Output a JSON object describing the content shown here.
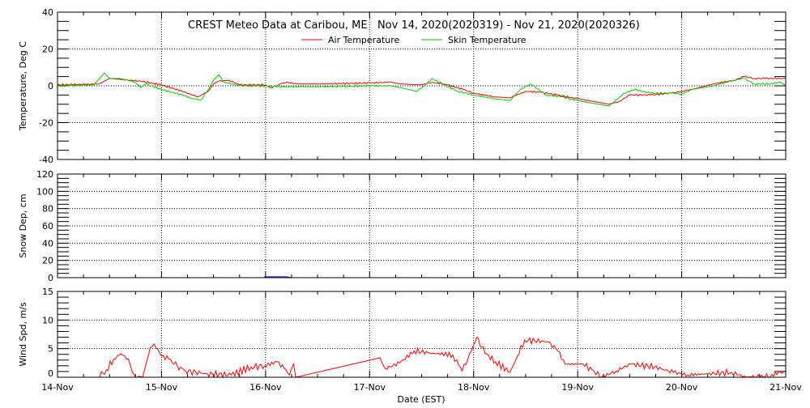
{
  "chart_data": {
    "type": "line",
    "title": "CREST Meteo Data at Caribou, ME   Nov 14, 2020(2020319) - Nov 21, 2020(2020326)",
    "xlabel": "Date (EST)",
    "x_unit": "days since 14-Nov 00:00",
    "xlim": [
      0,
      7
    ],
    "x_tick_labels": [
      "14-Nov",
      "15-Nov",
      "16-Nov",
      "17-Nov",
      "18-Nov",
      "19-Nov",
      "20-Nov",
      "21-Nov"
    ],
    "grid": true,
    "legend": {
      "placement": "top-center",
      "entries": [
        "Air Temperature",
        "Skin Temperature"
      ]
    },
    "colors": {
      "air": "#ff0000",
      "skin": "#00cc00",
      "snow": "#0000ff",
      "wind": "#ff0000"
    },
    "panels": [
      {
        "ylabel": "Temperature, Deg C",
        "ylim": [
          -40,
          40
        ],
        "major_ticks": [
          -40,
          -20,
          0,
          20,
          40
        ],
        "minor_step": 5,
        "series": [
          {
            "name": "Air Temperature",
            "color": "#ff0000",
            "points": [
              [
                0,
                0.5
              ],
              [
                0.4,
                1
              ],
              [
                0.5,
                4
              ],
              [
                0.6,
                3.5
              ],
              [
                0.8,
                2.5
              ],
              [
                1.0,
                0.5
              ],
              [
                1.2,
                -3
              ],
              [
                1.3,
                -5
              ],
              [
                1.35,
                -6
              ],
              [
                1.45,
                -3
              ],
              [
                1.5,
                1
              ],
              [
                1.55,
                2.5
              ],
              [
                1.65,
                3
              ],
              [
                1.75,
                0.5
              ],
              [
                2.0,
                0.5
              ],
              [
                2.05,
                -1
              ],
              [
                2.15,
                1
              ],
              [
                2.2,
                2
              ],
              [
                2.3,
                1
              ],
              [
                2.5,
                1
              ],
              [
                3.0,
                1.5
              ],
              [
                3.2,
                2
              ],
              [
                3.3,
                1
              ],
              [
                3.5,
                0.5
              ],
              [
                3.6,
                2
              ],
              [
                3.75,
                0.5
              ],
              [
                3.9,
                -2
              ],
              [
                4.0,
                -4
              ],
              [
                4.2,
                -6
              ],
              [
                4.35,
                -6.5
              ],
              [
                4.5,
                -3
              ],
              [
                4.65,
                -3.5
              ],
              [
                4.8,
                -5
              ],
              [
                5.0,
                -7
              ],
              [
                5.2,
                -9
              ],
              [
                5.3,
                -10
              ],
              [
                5.4,
                -8.5
              ],
              [
                5.5,
                -5
              ],
              [
                5.7,
                -5
              ],
              [
                5.9,
                -4
              ],
              [
                6.0,
                -3
              ],
              [
                6.1,
                -2
              ],
              [
                6.3,
                1
              ],
              [
                6.5,
                3
              ],
              [
                6.6,
                5
              ],
              [
                6.7,
                4
              ],
              [
                6.8,
                4
              ],
              [
                7.0,
                4
              ]
            ]
          },
          {
            "name": "Skin Temperature",
            "color": "#00cc00",
            "points": [
              [
                0,
                0
              ],
              [
                0.35,
                0.5
              ],
              [
                0.45,
                7
              ],
              [
                0.5,
                4
              ],
              [
                0.6,
                4
              ],
              [
                0.75,
                2
              ],
              [
                0.8,
                -1
              ],
              [
                0.85,
                1
              ],
              [
                1.0,
                -2
              ],
              [
                1.2,
                -5
              ],
              [
                1.3,
                -7
              ],
              [
                1.38,
                -7.5
              ],
              [
                1.45,
                -2
              ],
              [
                1.5,
                3
              ],
              [
                1.55,
                6
              ],
              [
                1.6,
                2
              ],
              [
                1.75,
                0
              ],
              [
                2.0,
                0
              ],
              [
                2.1,
                -0.5
              ],
              [
                2.5,
                -0.5
              ],
              [
                3.0,
                0
              ],
              [
                3.2,
                0
              ],
              [
                3.3,
                -1
              ],
              [
                3.45,
                -3
              ],
              [
                3.55,
                1
              ],
              [
                3.6,
                4
              ],
              [
                3.7,
                1
              ],
              [
                3.85,
                -3
              ],
              [
                4.0,
                -5
              ],
              [
                4.2,
                -7
              ],
              [
                4.35,
                -8
              ],
              [
                4.45,
                -2
              ],
              [
                4.55,
                1
              ],
              [
                4.7,
                -5
              ],
              [
                4.85,
                -6
              ],
              [
                5.0,
                -8
              ],
              [
                5.2,
                -10
              ],
              [
                5.3,
                -11
              ],
              [
                5.45,
                -4
              ],
              [
                5.55,
                -2
              ],
              [
                5.7,
                -4
              ],
              [
                5.9,
                -4
              ],
              [
                6.0,
                -4.5
              ],
              [
                6.1,
                -2
              ],
              [
                6.3,
                0
              ],
              [
                6.5,
                3
              ],
              [
                6.6,
                4
              ],
              [
                6.7,
                1
              ],
              [
                6.85,
                1
              ],
              [
                6.95,
                2
              ],
              [
                7.0,
                0
              ]
            ]
          }
        ]
      },
      {
        "ylabel": "Snow Dep, cm",
        "ylim": [
          0,
          120
        ],
        "major_ticks": [
          0,
          20,
          40,
          60,
          80,
          100,
          120
        ],
        "minor_step": 5,
        "series": [
          {
            "name": "Snow Depth",
            "color": "#0000ff",
            "points": [
              [
                0,
                0
              ],
              [
                1.98,
                0
              ],
              [
                2.0,
                1
              ],
              [
                2.2,
                1
              ],
              [
                2.25,
                0
              ],
              [
                7,
                0
              ]
            ]
          }
        ]
      },
      {
        "ylabel": "Wind Spd, m/s",
        "ylim": [
          0,
          15
        ],
        "major_ticks": [
          0,
          5,
          10,
          15
        ],
        "minor_step": 1,
        "series": [
          {
            "name": "Wind Speed",
            "color": "#ff0000",
            "points": [
              [
                0.39,
                0
              ],
              [
                0.47,
                1.3
              ],
              [
                0.54,
                3.2
              ],
              [
                0.61,
                4.1
              ],
              [
                0.68,
                3.2
              ],
              [
                0.72,
                0.85
              ],
              [
                0.75,
                0
              ],
              [
                0.82,
                0.1
              ],
              [
                0.89,
                5.1
              ],
              [
                0.93,
                5.8
              ],
              [
                1.0,
                3.7
              ],
              [
                1.07,
                3.2
              ],
              [
                1.12,
                2.3
              ],
              [
                1.23,
                1.1
              ],
              [
                1.44,
                0.6
              ],
              [
                1.67,
                0.4
              ],
              [
                1.86,
                1.8
              ],
              [
                1.99,
                2.0
              ],
              [
                2.11,
                2.7
              ],
              [
                2.18,
                1.5
              ],
              [
                2.23,
                0.4
              ],
              [
                2.27,
                2.3
              ],
              [
                2.29,
                0
              ],
              [
                3.1,
                3.4
              ],
              [
                3.15,
                1.5
              ],
              [
                3.29,
                2.5
              ],
              [
                3.43,
                4.6
              ],
              [
                3.61,
                4.2
              ],
              [
                3.8,
                3.9
              ],
              [
                3.89,
                1.1
              ],
              [
                3.98,
                4.6
              ],
              [
                4.03,
                7.0
              ],
              [
                4.11,
                4.2
              ],
              [
                4.21,
                2.7
              ],
              [
                4.35,
                0.85
              ],
              [
                4.42,
                3.7
              ],
              [
                4.49,
                6.5
              ],
              [
                4.72,
                6.2
              ],
              [
                4.81,
                4.6
              ],
              [
                4.88,
                2.3
              ],
              [
                5.05,
                2.3
              ],
              [
                5.14,
                1.3
              ],
              [
                5.23,
                0
              ],
              [
                5.37,
                1.1
              ],
              [
                5.51,
                2.3
              ],
              [
                5.74,
                1.8
              ],
              [
                5.92,
                0.85
              ],
              [
                6.06,
                0.4
              ],
              [
                6.25,
                0.6
              ],
              [
                6.48,
                0.85
              ],
              [
                6.62,
                0
              ],
              [
                6.85,
                0
              ],
              [
                6.9,
                0.85
              ],
              [
                7.0,
                0.85
              ]
            ]
          }
        ]
      }
    ]
  }
}
